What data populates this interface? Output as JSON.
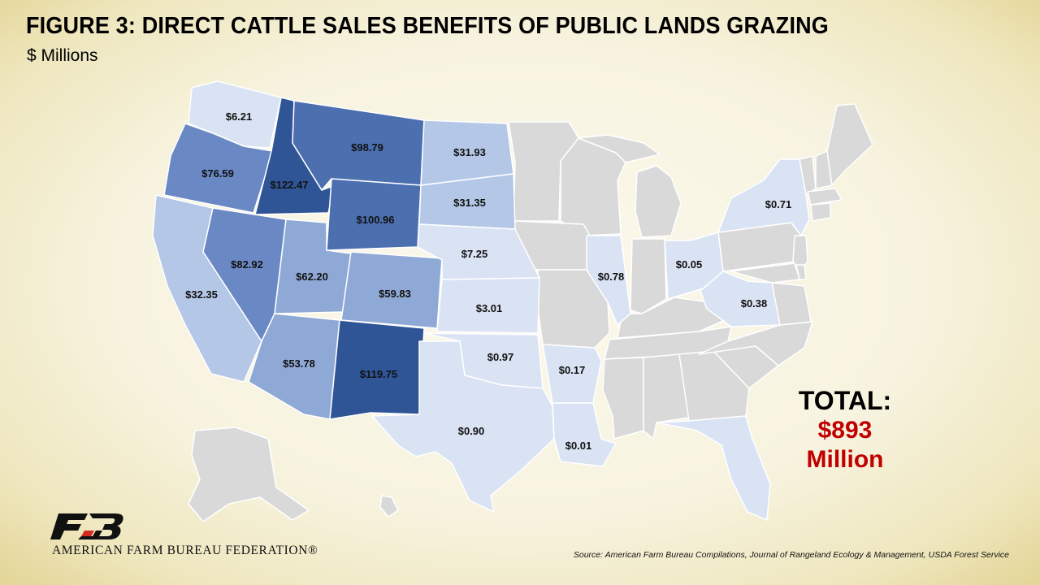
{
  "figure": {
    "title": "FIGURE 3: DIRECT CATTLE SALES BENEFITS OF PUBLIC LANDS GRAZING",
    "subtitle": "$ Millions"
  },
  "colors": {
    "grey": "#d9d9d9",
    "tier1": "#dae3f3",
    "tier2": "#b4c7e7",
    "tier3": "#8fa9d6",
    "tier4": "#6a89c4",
    "tier5": "#4c6fb0",
    "tier6": "#2f5597",
    "total_value": "#c00000",
    "logo_red": "#d52b1e"
  },
  "states": [
    {
      "name": "Washington",
      "label": "$6.21",
      "value": 6.21,
      "tier": "tier1"
    },
    {
      "name": "Oregon",
      "label": "$76.59",
      "value": 76.59,
      "tier": "tier4"
    },
    {
      "name": "California",
      "label": "$32.35",
      "value": 32.35,
      "tier": "tier2"
    },
    {
      "name": "Idaho",
      "label": "$122.47",
      "value": 122.47,
      "tier": "tier6"
    },
    {
      "name": "Nevada",
      "label": "$82.92",
      "value": 82.92,
      "tier": "tier4"
    },
    {
      "name": "Montana",
      "label": "$98.79",
      "value": 98.79,
      "tier": "tier5"
    },
    {
      "name": "Wyoming",
      "label": "$100.96",
      "value": 100.96,
      "tier": "tier5"
    },
    {
      "name": "Utah",
      "label": "$62.20",
      "value": 62.2,
      "tier": "tier3"
    },
    {
      "name": "Colorado",
      "label": "$59.83",
      "value": 59.83,
      "tier": "tier3"
    },
    {
      "name": "Arizona",
      "label": "$53.78",
      "value": 53.78,
      "tier": "tier3"
    },
    {
      "name": "New Mexico",
      "label": "$119.75",
      "value": 119.75,
      "tier": "tier6"
    },
    {
      "name": "North Dakota",
      "label": "$31.93",
      "value": 31.93,
      "tier": "tier2"
    },
    {
      "name": "South Dakota",
      "label": "$31.35",
      "value": 31.35,
      "tier": "tier2"
    },
    {
      "name": "Nebraska",
      "label": "$7.25",
      "value": 7.25,
      "tier": "tier1"
    },
    {
      "name": "Kansas",
      "label": "$3.01",
      "value": 3.01,
      "tier": "tier1"
    },
    {
      "name": "Oklahoma",
      "label": "$0.97",
      "value": 0.97,
      "tier": "tier1"
    },
    {
      "name": "Texas",
      "label": "$0.90",
      "value": 0.9,
      "tier": "tier1"
    },
    {
      "name": "Arkansas",
      "label": "$0.17",
      "value": 0.17,
      "tier": "tier1"
    },
    {
      "name": "Louisiana",
      "label": "$0.01",
      "value": 0.01,
      "tier": "tier1"
    },
    {
      "name": "Illinois",
      "label": "$0.78",
      "value": 0.78,
      "tier": "tier1"
    },
    {
      "name": "Ohio",
      "label": "$0.05",
      "value": 0.05,
      "tier": "tier1"
    },
    {
      "name": "West Virginia",
      "label": "$0.38",
      "value": 0.38,
      "tier": "tier1"
    },
    {
      "name": "New York",
      "label": "$0.71",
      "value": 0.71,
      "tier": "tier1"
    },
    {
      "name": "Florida",
      "label": "",
      "value": null,
      "tier": "tier1"
    }
  ],
  "total": {
    "label": "TOTAL:",
    "value": "$893",
    "unit": "Million"
  },
  "organization": "AMERICAN FARM BUREAU FEDERATION®",
  "source": "Source: American Farm Bureau Compilations, Journal of Rangeland Ecology & Management, USDA Forest Service"
}
